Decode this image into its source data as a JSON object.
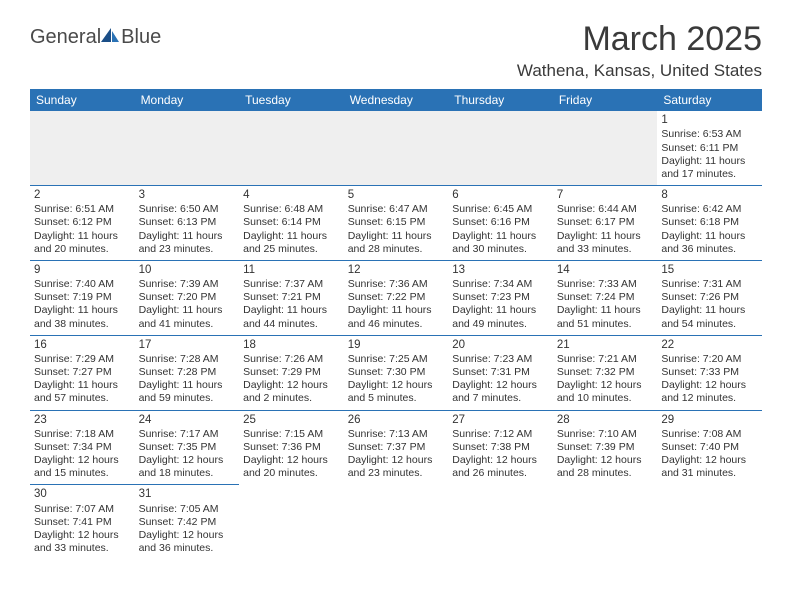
{
  "logo": {
    "text1": "General",
    "text2": "Blue"
  },
  "title": "March 2025",
  "location": "Wathena, Kansas, United States",
  "colors": {
    "header_bg": "#2a72b5",
    "header_fg": "#ffffff",
    "border": "#2a72b5",
    "text": "#333333",
    "blank_bg": "#efefef"
  },
  "day_headers": [
    "Sunday",
    "Monday",
    "Tuesday",
    "Wednesday",
    "Thursday",
    "Friday",
    "Saturday"
  ],
  "weeks": [
    [
      null,
      null,
      null,
      null,
      null,
      null,
      {
        "n": "1",
        "sr": "Sunrise: 6:53 AM",
        "ss": "Sunset: 6:11 PM",
        "d1": "Daylight: 11 hours",
        "d2": "and 17 minutes."
      }
    ],
    [
      {
        "n": "2",
        "sr": "Sunrise: 6:51 AM",
        "ss": "Sunset: 6:12 PM",
        "d1": "Daylight: 11 hours",
        "d2": "and 20 minutes."
      },
      {
        "n": "3",
        "sr": "Sunrise: 6:50 AM",
        "ss": "Sunset: 6:13 PM",
        "d1": "Daylight: 11 hours",
        "d2": "and 23 minutes."
      },
      {
        "n": "4",
        "sr": "Sunrise: 6:48 AM",
        "ss": "Sunset: 6:14 PM",
        "d1": "Daylight: 11 hours",
        "d2": "and 25 minutes."
      },
      {
        "n": "5",
        "sr": "Sunrise: 6:47 AM",
        "ss": "Sunset: 6:15 PM",
        "d1": "Daylight: 11 hours",
        "d2": "and 28 minutes."
      },
      {
        "n": "6",
        "sr": "Sunrise: 6:45 AM",
        "ss": "Sunset: 6:16 PM",
        "d1": "Daylight: 11 hours",
        "d2": "and 30 minutes."
      },
      {
        "n": "7",
        "sr": "Sunrise: 6:44 AM",
        "ss": "Sunset: 6:17 PM",
        "d1": "Daylight: 11 hours",
        "d2": "and 33 minutes."
      },
      {
        "n": "8",
        "sr": "Sunrise: 6:42 AM",
        "ss": "Sunset: 6:18 PM",
        "d1": "Daylight: 11 hours",
        "d2": "and 36 minutes."
      }
    ],
    [
      {
        "n": "9",
        "sr": "Sunrise: 7:40 AM",
        "ss": "Sunset: 7:19 PM",
        "d1": "Daylight: 11 hours",
        "d2": "and 38 minutes."
      },
      {
        "n": "10",
        "sr": "Sunrise: 7:39 AM",
        "ss": "Sunset: 7:20 PM",
        "d1": "Daylight: 11 hours",
        "d2": "and 41 minutes."
      },
      {
        "n": "11",
        "sr": "Sunrise: 7:37 AM",
        "ss": "Sunset: 7:21 PM",
        "d1": "Daylight: 11 hours",
        "d2": "and 44 minutes."
      },
      {
        "n": "12",
        "sr": "Sunrise: 7:36 AM",
        "ss": "Sunset: 7:22 PM",
        "d1": "Daylight: 11 hours",
        "d2": "and 46 minutes."
      },
      {
        "n": "13",
        "sr": "Sunrise: 7:34 AM",
        "ss": "Sunset: 7:23 PM",
        "d1": "Daylight: 11 hours",
        "d2": "and 49 minutes."
      },
      {
        "n": "14",
        "sr": "Sunrise: 7:33 AM",
        "ss": "Sunset: 7:24 PM",
        "d1": "Daylight: 11 hours",
        "d2": "and 51 minutes."
      },
      {
        "n": "15",
        "sr": "Sunrise: 7:31 AM",
        "ss": "Sunset: 7:26 PM",
        "d1": "Daylight: 11 hours",
        "d2": "and 54 minutes."
      }
    ],
    [
      {
        "n": "16",
        "sr": "Sunrise: 7:29 AM",
        "ss": "Sunset: 7:27 PM",
        "d1": "Daylight: 11 hours",
        "d2": "and 57 minutes."
      },
      {
        "n": "17",
        "sr": "Sunrise: 7:28 AM",
        "ss": "Sunset: 7:28 PM",
        "d1": "Daylight: 11 hours",
        "d2": "and 59 minutes."
      },
      {
        "n": "18",
        "sr": "Sunrise: 7:26 AM",
        "ss": "Sunset: 7:29 PM",
        "d1": "Daylight: 12 hours",
        "d2": "and 2 minutes."
      },
      {
        "n": "19",
        "sr": "Sunrise: 7:25 AM",
        "ss": "Sunset: 7:30 PM",
        "d1": "Daylight: 12 hours",
        "d2": "and 5 minutes."
      },
      {
        "n": "20",
        "sr": "Sunrise: 7:23 AM",
        "ss": "Sunset: 7:31 PM",
        "d1": "Daylight: 12 hours",
        "d2": "and 7 minutes."
      },
      {
        "n": "21",
        "sr": "Sunrise: 7:21 AM",
        "ss": "Sunset: 7:32 PM",
        "d1": "Daylight: 12 hours",
        "d2": "and 10 minutes."
      },
      {
        "n": "22",
        "sr": "Sunrise: 7:20 AM",
        "ss": "Sunset: 7:33 PM",
        "d1": "Daylight: 12 hours",
        "d2": "and 12 minutes."
      }
    ],
    [
      {
        "n": "23",
        "sr": "Sunrise: 7:18 AM",
        "ss": "Sunset: 7:34 PM",
        "d1": "Daylight: 12 hours",
        "d2": "and 15 minutes."
      },
      {
        "n": "24",
        "sr": "Sunrise: 7:17 AM",
        "ss": "Sunset: 7:35 PM",
        "d1": "Daylight: 12 hours",
        "d2": "and 18 minutes."
      },
      {
        "n": "25",
        "sr": "Sunrise: 7:15 AM",
        "ss": "Sunset: 7:36 PM",
        "d1": "Daylight: 12 hours",
        "d2": "and 20 minutes."
      },
      {
        "n": "26",
        "sr": "Sunrise: 7:13 AM",
        "ss": "Sunset: 7:37 PM",
        "d1": "Daylight: 12 hours",
        "d2": "and 23 minutes."
      },
      {
        "n": "27",
        "sr": "Sunrise: 7:12 AM",
        "ss": "Sunset: 7:38 PM",
        "d1": "Daylight: 12 hours",
        "d2": "and 26 minutes."
      },
      {
        "n": "28",
        "sr": "Sunrise: 7:10 AM",
        "ss": "Sunset: 7:39 PM",
        "d1": "Daylight: 12 hours",
        "d2": "and 28 minutes."
      },
      {
        "n": "29",
        "sr": "Sunrise: 7:08 AM",
        "ss": "Sunset: 7:40 PM",
        "d1": "Daylight: 12 hours",
        "d2": "and 31 minutes."
      }
    ],
    [
      {
        "n": "30",
        "sr": "Sunrise: 7:07 AM",
        "ss": "Sunset: 7:41 PM",
        "d1": "Daylight: 12 hours",
        "d2": "and 33 minutes."
      },
      {
        "n": "31",
        "sr": "Sunrise: 7:05 AM",
        "ss": "Sunset: 7:42 PM",
        "d1": "Daylight: 12 hours",
        "d2": "and 36 minutes."
      },
      null,
      null,
      null,
      null,
      null
    ]
  ]
}
